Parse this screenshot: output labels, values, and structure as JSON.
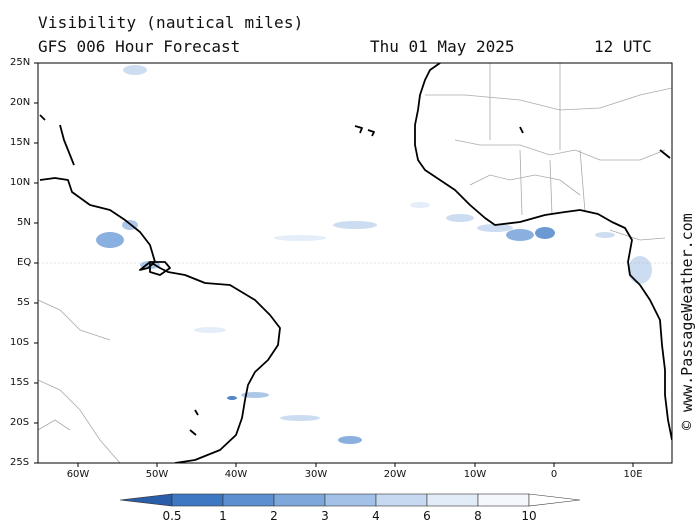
{
  "header": {
    "title": "Visibility (nautical miles)",
    "subtitle": "GFS 006 Hour Forecast",
    "date": "Thu 01 May 2025",
    "time": "12 UTC"
  },
  "credit": "© www.PassageWeather.com",
  "map": {
    "lat_labels": [
      "25N",
      "20N",
      "15N",
      "10N",
      "5N",
      "EQ",
      "5S",
      "10S",
      "15S",
      "20S",
      "25S"
    ],
    "lon_labels": [
      "60W",
      "50W",
      "40W",
      "30W",
      "20W",
      "10W",
      "0",
      "10E"
    ],
    "land_color": "#ffffff",
    "coast_color": "#000000",
    "border_color": "#aaaaaa"
  },
  "colorbar": {
    "labels": [
      "0.5",
      "1",
      "2",
      "3",
      "4",
      "6",
      "8",
      "10"
    ],
    "colors": [
      "#2b5ea8",
      "#3e78c2",
      "#5a8fd0",
      "#7ea8dc",
      "#a3c1e6",
      "#c7d9f0",
      "#e2ecf8",
      "#f4f8fd",
      "#ffffff"
    ]
  }
}
